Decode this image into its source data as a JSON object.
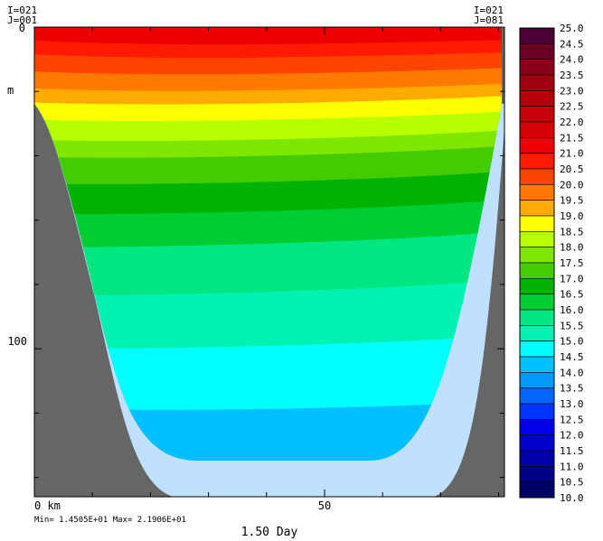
{
  "chart_data": {
    "type": "heatmap",
    "title": "",
    "corner_labels": {
      "left_i": "I=021",
      "left_j": "J=001",
      "right_i": "I=021",
      "right_j": "J=081"
    },
    "y_unit": "m",
    "y_ticks": [
      "0",
      "100"
    ],
    "x_ticks": [
      "0 km",
      "50"
    ],
    "xlim": [
      0,
      81
    ],
    "ylim": [
      0,
      146
    ],
    "stats": "Min= 1.4505E+01  Max= 2.1906E+01",
    "time_label": "1.50 Day",
    "colorbar": {
      "levels": [
        "25.0",
        "24.5",
        "24.0",
        "23.5",
        "23.0",
        "22.5",
        "22.0",
        "21.5",
        "21.0",
        "20.5",
        "20.0",
        "19.5",
        "19.0",
        "18.5",
        "18.0",
        "17.5",
        "17.0",
        "16.5",
        "16.0",
        "15.5",
        "15.0",
        "14.5",
        "14.0",
        "13.5",
        "13.0",
        "12.5",
        "12.0",
        "11.5",
        "11.0",
        "10.5",
        "10.0"
      ],
      "colors": [
        "#4a0033",
        "#6b0022",
        "#8b0016",
        "#a10010",
        "#b4000b",
        "#c70008",
        "#d90005",
        "#ee0000",
        "#ff1a00",
        "#ff4400",
        "#ff7a00",
        "#ffaa00",
        "#ffff00",
        "#b8ff00",
        "#7fe600",
        "#44cc00",
        "#00b300",
        "#00cc33",
        "#00e680",
        "#00f2b2",
        "#00ffff",
        "#00bfff",
        "#0099ff",
        "#0066ff",
        "#0033ff",
        "#0000ee",
        "#0000cc",
        "#0000aa",
        "#000088",
        "#000066"
      ]
    },
    "bands": [
      {
        "value": 21.5,
        "color": "#ee0000"
      },
      {
        "value": 21.0,
        "color": "#ff1a00"
      },
      {
        "value": 20.5,
        "color": "#ff4400"
      },
      {
        "value": 20.0,
        "color": "#ff7a00"
      },
      {
        "value": 19.5,
        "color": "#ffaa00"
      },
      {
        "value": 19.0,
        "color": "#ffff00"
      },
      {
        "value": 18.5,
        "color": "#b8ff00"
      },
      {
        "value": 18.0,
        "color": "#7fe600"
      },
      {
        "value": 17.5,
        "color": "#44cc00"
      },
      {
        "value": 17.0,
        "color": "#00b300"
      },
      {
        "value": 16.5,
        "color": "#00cc33"
      },
      {
        "value": 16.0,
        "color": "#00e680"
      },
      {
        "value": 15.5,
        "color": "#00f2b2"
      },
      {
        "value": 15.0,
        "color": "#00ffff"
      },
      {
        "value": 14.5,
        "color": "#00bfff"
      }
    ],
    "band_depths": [
      4,
      8,
      13,
      18,
      22,
      27,
      33,
      38,
      46,
      55,
      65,
      80,
      97,
      117
    ],
    "band_tilt": [
      0,
      1,
      2,
      3,
      4,
      5,
      6,
      7,
      8,
      9,
      10,
      10,
      8,
      4
    ],
    "shelf_fill": "#c0e0ff",
    "land_fill": "#666666"
  }
}
